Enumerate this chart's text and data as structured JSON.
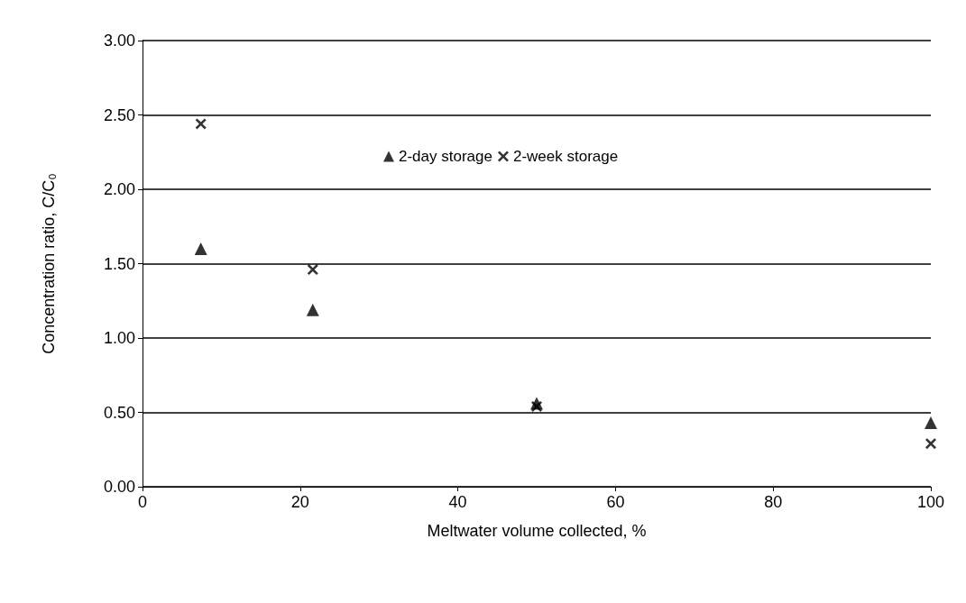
{
  "chart_data": {
    "type": "scatter",
    "xlabel": "Meltwater volume collected, %",
    "ylabel": "Concentration ratio, C/C₀",
    "x": [
      7.4,
      21.6,
      50,
      100
    ],
    "series": [
      {
        "name": "2-day storage",
        "color": "#000000",
        "marker": "triangle",
        "values": [
          1.6,
          1.19,
          0.56,
          0.43
        ]
      },
      {
        "name": "2-week storage",
        "color": "#000000",
        "marker": "cross",
        "values": [
          2.44,
          1.46,
          0.54,
          0.29
        ]
      }
    ],
    "xlim": [
      0,
      100
    ],
    "xticks": [
      0,
      20,
      40,
      60,
      80,
      100
    ],
    "ylim": [
      0,
      3
    ],
    "yticks": [
      {
        "value": 0,
        "label": "0.00"
      },
      {
        "value": 0.5,
        "label": "0.50"
      },
      {
        "value": 1,
        "label": "1.00"
      },
      {
        "value": 1.5,
        "label": "1.50"
      },
      {
        "value": 2,
        "label": "2.00"
      },
      {
        "value": 2.5,
        "label": "2.50"
      },
      {
        "value": 3,
        "label": "3.00"
      }
    ],
    "grid": "y",
    "legend": "top"
  }
}
